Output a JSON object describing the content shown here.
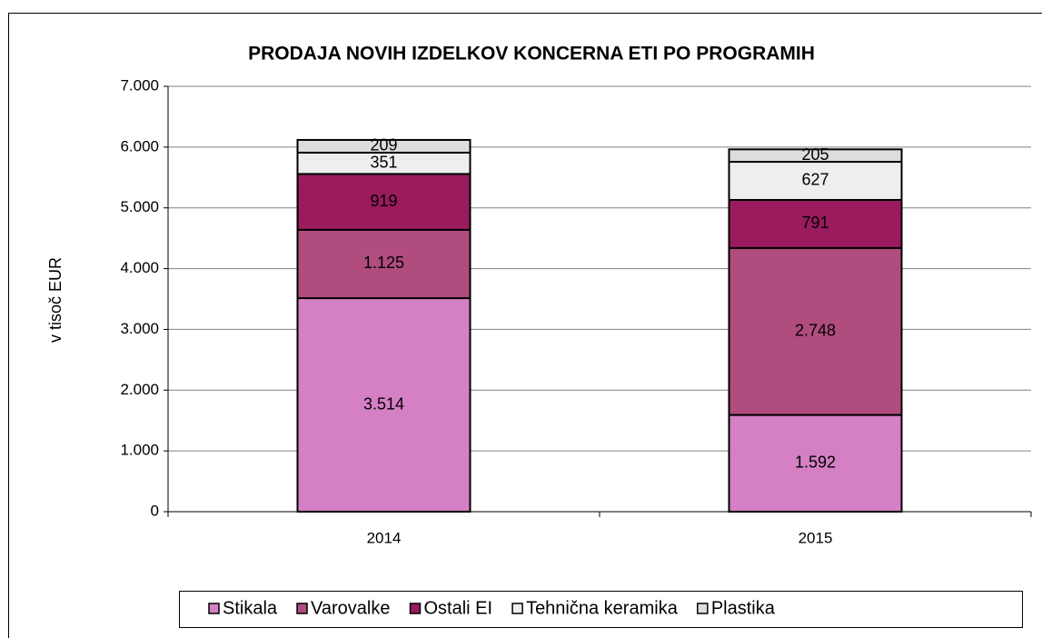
{
  "chart_data": {
    "type": "stacked_bar",
    "title": "PRODAJA NOVIH IZDELKOV KONCERNA ETI PO PROGRAMIH",
    "y_label": "v tisoč EUR",
    "categories": [
      "2014",
      "2015"
    ],
    "series": [
      {
        "name": "Stikala",
        "color": "#d580c4",
        "values": [
          3514,
          1592
        ],
        "value_labels": [
          "3.514",
          "1.592"
        ]
      },
      {
        "name": "Varovalke",
        "color": "#b04d7e",
        "values": [
          1125,
          2748
        ],
        "value_labels": [
          "1.125",
          "2.748"
        ]
      },
      {
        "name": "Ostali EI",
        "color": "#9a1b5e",
        "values": [
          919,
          791
        ],
        "value_labels": [
          "919",
          "791"
        ]
      },
      {
        "name": "Tehnična keramika",
        "color": "#eeeeee",
        "values": [
          351,
          627
        ],
        "value_labels": [
          "351",
          "627"
        ]
      },
      {
        "name": "Plastika",
        "color": "#dddddd",
        "values": [
          209,
          205
        ],
        "value_labels": [
          "209",
          "205"
        ]
      }
    ],
    "ylim": [
      0,
      7000
    ],
    "yticks": [
      0,
      {
        "value": 1000,
        "label": "1.000"
      },
      {
        "value": 2000,
        "label": "2.000"
      },
      {
        "value": 3000,
        "label": "3.000"
      },
      {
        "value": 4000,
        "label": "4.000"
      },
      {
        "value": 5000,
        "label": "5.000"
      },
      {
        "value": 6000,
        "label": "6.000"
      },
      {
        "value": 7000,
        "label": "7.000"
      }
    ],
    "grid": true,
    "legend": "bottom"
  }
}
